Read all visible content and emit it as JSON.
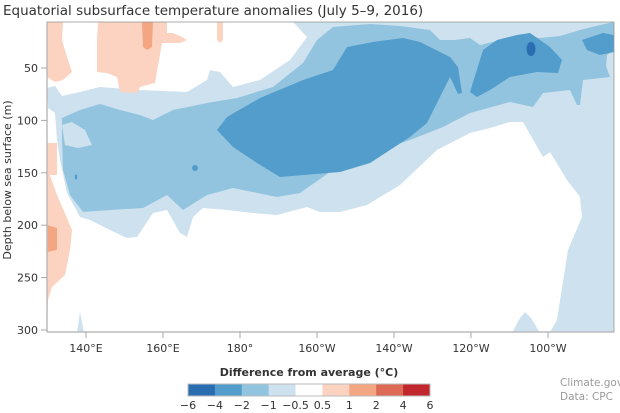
{
  "chart_data": {
    "type": "contour",
    "title": "Equatorial subsurface temperature anomalies (July 5–9, 2016)",
    "xlabel": "",
    "ylabel": "Depth below sea surface (m)",
    "x_ticks": [
      {
        "value": 140,
        "label": "140°E"
      },
      {
        "value": 160,
        "label": "160°E"
      },
      {
        "value": 180,
        "label": "180°"
      },
      {
        "value": 200,
        "label": "160°W"
      },
      {
        "value": 220,
        "label": "140°W"
      },
      {
        "value": 240,
        "label": "120°W"
      },
      {
        "value": 260,
        "label": "100°W"
      }
    ],
    "xlim_deg_east": [
      130,
      283
    ],
    "y_ticks": [
      50,
      100,
      150,
      200,
      250,
      300
    ],
    "ylim": [
      5,
      300
    ],
    "y_inverted": true,
    "grid": false,
    "legend": {
      "title": "Difference from average (°C)",
      "placement": "bottom",
      "boundaries": [
        "−6",
        "−4",
        "−2",
        "−1",
        "−0.5",
        "0.5",
        "1",
        "2",
        "4",
        "6"
      ],
      "colors": [
        "#2a6db0",
        "#529dcc",
        "#93c4df",
        "#cde1ee",
        "#ffffff",
        "#fbd3c0",
        "#f4a582",
        "#dc6a56",
        "#c1272d"
      ]
    },
    "regions_described": [
      {
        "level": "-4 to -6",
        "location": "small core near 105°W, ~40 m"
      },
      {
        "level": "-2 to -4",
        "location": "large body 175°E–128°W, 40–175 m; patches 125°W–110°W and 95°W–83°W near 30–70 m"
      },
      {
        "level": "-1 to -2",
        "location": "band 135°E–83°W from ~100 m in west to surface in east"
      },
      {
        "level": "-0.5 to -1",
        "location": "envelope around cool band; eastern Pacific east of ~100°W to 300 m"
      },
      {
        "level": "0.5 to 1",
        "location": "near-surface west Pacific 130°E–165°E; 130°E at 170–300 m"
      },
      {
        "level": "1 to 2",
        "location": "near 162°E at 5–30 m; 130°E near 210–230 m"
      }
    ]
  },
  "credits": {
    "source_site": "Climate.gov",
    "data_source": "Data: CPC"
  }
}
